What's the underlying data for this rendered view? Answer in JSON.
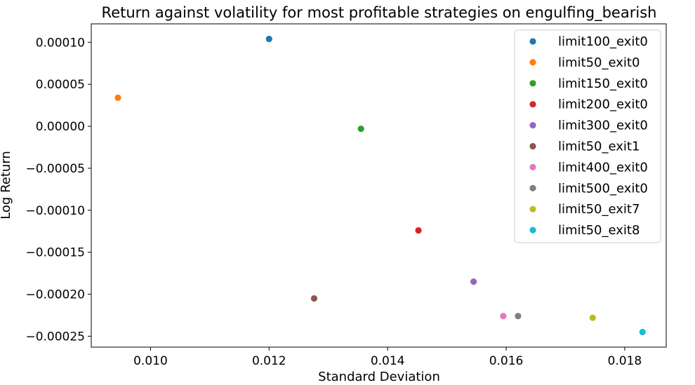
{
  "chart_data": {
    "type": "scatter",
    "title": "Return against volatility for most profitable strategies on engulfing_bearish",
    "xlabel": "Standard Deviation",
    "ylabel": "Log Return",
    "xlim": [
      0.009,
      0.0187
    ],
    "ylim": [
      -0.000263,
      0.000122
    ],
    "xticks": [
      {
        "value": 0.01,
        "label": "0.010"
      },
      {
        "value": 0.012,
        "label": "0.012"
      },
      {
        "value": 0.014,
        "label": "0.014"
      },
      {
        "value": 0.016,
        "label": "0.016"
      },
      {
        "value": 0.018,
        "label": "0.018"
      }
    ],
    "yticks": [
      {
        "value": 0.0001,
        "label": "0.00010"
      },
      {
        "value": 5e-05,
        "label": "0.00005"
      },
      {
        "value": 0.0,
        "label": "0.00000"
      },
      {
        "value": -5e-05,
        "label": "−0.00005"
      },
      {
        "value": -0.0001,
        "label": "−0.00010"
      },
      {
        "value": -0.00015,
        "label": "−0.00015"
      },
      {
        "value": -0.0002,
        "label": "−0.00020"
      },
      {
        "value": -0.00025,
        "label": "−0.00025"
      }
    ],
    "grid": false,
    "legend_position": "top-right",
    "series": [
      {
        "name": "limit100_exit0",
        "color": "#1f77b4",
        "x": 0.012,
        "y": 0.000104
      },
      {
        "name": "limit50_exit0",
        "color": "#ff7f0e",
        "x": 0.00945,
        "y": 3.4e-05
      },
      {
        "name": "limit150_exit0",
        "color": "#2ca02c",
        "x": 0.01355,
        "y": -3e-06
      },
      {
        "name": "limit200_exit0",
        "color": "#d62728",
        "x": 0.01452,
        "y": -0.000124
      },
      {
        "name": "limit300_exit0",
        "color": "#9467bd",
        "x": 0.01545,
        "y": -0.000185
      },
      {
        "name": "limit50_exit1",
        "color": "#8c564b",
        "x": 0.01276,
        "y": -0.000205
      },
      {
        "name": "limit400_exit0",
        "color": "#e377c2",
        "x": 0.01595,
        "y": -0.000226
      },
      {
        "name": "limit500_exit0",
        "color": "#7f7f7f",
        "x": 0.0162,
        "y": -0.000226
      },
      {
        "name": "limit50_exit7",
        "color": "#bcbd22",
        "x": 0.01746,
        "y": -0.000228
      },
      {
        "name": "limit50_exit8",
        "color": "#17becf",
        "x": 0.0183,
        "y": -0.000245
      }
    ]
  }
}
